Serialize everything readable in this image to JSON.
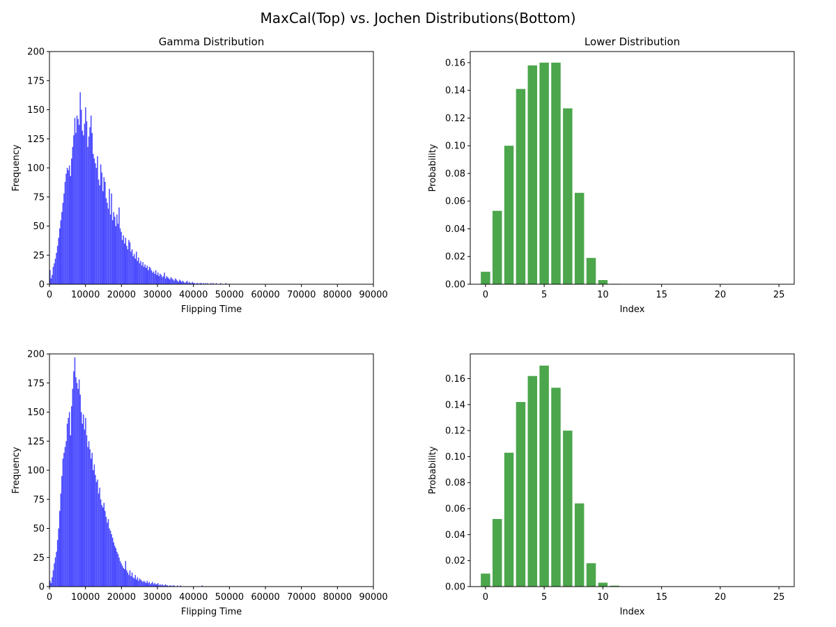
{
  "figure": {
    "title": "MaxCal(Top) vs. Jochen Distributions(Bottom)"
  },
  "colors": {
    "histogram": "#4b4bff",
    "bars": "#4ca64c",
    "axes": "#000000"
  },
  "chart_data": [
    {
      "id": "top-left",
      "type": "bar",
      "subtype": "histogram",
      "title": "Gamma Distribution",
      "xlabel": "Flipping Time",
      "ylabel": "Frequency",
      "xlim": [
        0,
        90000
      ],
      "ylim": [
        0,
        200
      ],
      "xticks": [
        0,
        10000,
        20000,
        30000,
        40000,
        50000,
        60000,
        70000,
        80000,
        90000
      ],
      "yticks": [
        0,
        25,
        50,
        75,
        100,
        125,
        150,
        175,
        200
      ],
      "bin_width": 300,
      "x_start": 0,
      "values": [
        12,
        5,
        8,
        15,
        18,
        22,
        27,
        33,
        40,
        48,
        55,
        62,
        70,
        78,
        88,
        95,
        100,
        98,
        102,
        93,
        108,
        118,
        128,
        143,
        130,
        145,
        142,
        137,
        165,
        150,
        132,
        128,
        138,
        152,
        140,
        118,
        127,
        135,
        145,
        130,
        112,
        108,
        104,
        100,
        110,
        90,
        85,
        103,
        96,
        80,
        92,
        88,
        74,
        70,
        65,
        82,
        60,
        78,
        55,
        62,
        58,
        50,
        60,
        52,
        66,
        48,
        45,
        38,
        42,
        35,
        40,
        33,
        30,
        38,
        36,
        28,
        30,
        24,
        26,
        22,
        28,
        20,
        23,
        18,
        20,
        16,
        19,
        15,
        17,
        14,
        16,
        12,
        15,
        14,
        12,
        10,
        11,
        9,
        12,
        8,
        10,
        7,
        9,
        8,
        6,
        7,
        10,
        5,
        7,
        6,
        5,
        4,
        6,
        5,
        4,
        3,
        5,
        4,
        3,
        2,
        4,
        3,
        2,
        3,
        2,
        1,
        2,
        3,
        1,
        2,
        1,
        1,
        2,
        1,
        1,
        0,
        1,
        1,
        0,
        1,
        1,
        0,
        1,
        0,
        1,
        0,
        1,
        0,
        0,
        1,
        0,
        1,
        0,
        0,
        1,
        0,
        0,
        0,
        1,
        0,
        0,
        0,
        0,
        1,
        0,
        0,
        0,
        0,
        0,
        0,
        0,
        0,
        0,
        0,
        0,
        0,
        0,
        0,
        0,
        0,
        0,
        0,
        0,
        0,
        0,
        0,
        0,
        0,
        0,
        0,
        0,
        0,
        0,
        0,
        0,
        0,
        0,
        0,
        0,
        0
      ]
    },
    {
      "id": "top-right",
      "type": "bar",
      "title": "Lower Distribution",
      "xlabel": "Index",
      "ylabel": "Probability",
      "xlim": [
        -1.3,
        26.3
      ],
      "ylim": [
        0,
        0.168
      ],
      "xticks": [
        0,
        5,
        10,
        15,
        20,
        25
      ],
      "yticks": [
        0.0,
        0.02,
        0.04,
        0.06,
        0.08,
        0.1,
        0.12,
        0.14,
        0.16
      ],
      "categories": [
        0,
        1,
        2,
        3,
        4,
        5,
        6,
        7,
        8,
        9,
        10,
        11,
        12,
        13,
        14,
        15,
        16,
        17,
        18,
        19,
        20,
        21,
        22,
        23,
        24,
        25
      ],
      "values": [
        0.009,
        0.053,
        0.1,
        0.141,
        0.158,
        0.16,
        0.16,
        0.127,
        0.066,
        0.019,
        0.003,
        0.0003,
        0,
        0,
        0,
        0,
        0,
        0,
        0,
        0,
        0,
        0,
        0,
        0,
        0,
        0
      ]
    },
    {
      "id": "bottom-left",
      "type": "bar",
      "subtype": "histogram",
      "title": "",
      "xlabel": "Flipping Time",
      "ylabel": "Frequency",
      "xlim": [
        0,
        90000
      ],
      "ylim": [
        0,
        200
      ],
      "xticks": [
        0,
        10000,
        20000,
        30000,
        40000,
        50000,
        60000,
        70000,
        80000,
        90000
      ],
      "yticks": [
        0,
        25,
        50,
        75,
        100,
        125,
        150,
        175,
        200
      ],
      "bin_width": 300,
      "x_start": 0,
      "values": [
        5,
        3,
        8,
        14,
        20,
        25,
        30,
        40,
        50,
        65,
        80,
        95,
        110,
        115,
        120,
        125,
        140,
        145,
        150,
        130,
        155,
        170,
        185,
        197,
        180,
        175,
        170,
        178,
        165,
        150,
        140,
        148,
        135,
        145,
        130,
        120,
        125,
        118,
        110,
        115,
        100,
        105,
        96,
        90,
        92,
        80,
        85,
        75,
        70,
        68,
        72,
        65,
        60,
        55,
        58,
        50,
        48,
        45,
        42,
        38,
        35,
        33,
        30,
        28,
        25,
        22,
        20,
        18,
        16,
        15,
        22,
        14,
        12,
        10,
        14,
        9,
        12,
        8,
        7,
        10,
        6,
        8,
        5,
        7,
        6,
        5,
        4,
        5,
        4,
        3,
        5,
        3,
        4,
        2,
        3,
        4,
        2,
        3,
        2,
        2,
        3,
        1,
        2,
        1,
        2,
        1,
        1,
        2,
        1,
        1,
        0,
        1,
        1,
        0,
        1,
        1,
        0,
        0,
        1,
        0,
        0,
        1,
        0,
        0,
        0,
        0,
        0,
        0,
        0,
        0,
        0,
        0,
        0,
        0,
        0,
        0,
        0,
        0,
        0,
        0,
        0,
        1,
        0,
        0,
        0,
        0,
        0,
        0,
        0,
        0,
        0,
        0,
        0,
        0,
        0,
        0,
        0,
        0,
        0,
        0,
        0,
        0,
        0,
        0,
        0,
        0,
        0,
        0,
        0,
        0,
        0,
        0,
        0,
        0,
        0,
        0,
        0,
        0,
        0,
        0,
        0,
        0,
        0,
        0,
        0,
        0,
        0,
        0,
        0,
        0,
        0,
        0,
        0,
        0,
        0,
        0,
        0,
        0,
        0,
        0
      ]
    },
    {
      "id": "bottom-right",
      "type": "bar",
      "title": "",
      "xlabel": "Index",
      "ylabel": "Probability",
      "xlim": [
        -1.3,
        26.3
      ],
      "ylim": [
        0,
        0.179
      ],
      "xticks": [
        0,
        5,
        10,
        15,
        20,
        25
      ],
      "yticks": [
        0.0,
        0.02,
        0.04,
        0.06,
        0.08,
        0.1,
        0.12,
        0.14,
        0.16
      ],
      "categories": [
        0,
        1,
        2,
        3,
        4,
        5,
        6,
        7,
        8,
        9,
        10,
        11,
        12,
        13,
        14,
        15,
        16,
        17,
        18,
        19,
        20,
        21,
        22,
        23,
        24,
        25
      ],
      "values": [
        0.01,
        0.052,
        0.103,
        0.142,
        0.162,
        0.17,
        0.153,
        0.12,
        0.064,
        0.018,
        0.003,
        0.0007,
        0,
        0,
        0,
        0,
        0,
        0,
        0,
        0,
        0,
        0,
        0,
        0,
        0,
        0
      ]
    }
  ]
}
